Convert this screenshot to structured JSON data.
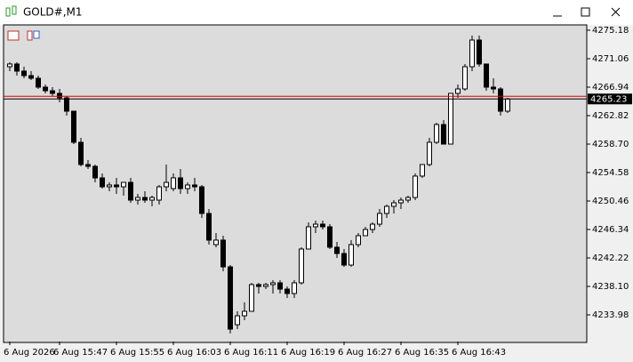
{
  "chart_data": {
    "type": "candlestick",
    "title": "GOLD#,M1",
    "categories": [
      "6 Aug 2026",
      null,
      null,
      null,
      null,
      null,
      null,
      "6 Aug 15:47",
      null,
      null,
      null,
      null,
      null,
      null,
      null,
      "6 Aug 15:55",
      null,
      null,
      null,
      null,
      null,
      null,
      null,
      "6 Aug 16:03",
      null,
      null,
      null,
      null,
      null,
      null,
      null,
      "6 Aug 16:11",
      null,
      null,
      null,
      null,
      null,
      null,
      null,
      "6 Aug 16:19",
      null,
      null,
      null,
      null,
      null,
      null,
      null,
      "6 Aug 16:27",
      null,
      null,
      null,
      null,
      null,
      null,
      null,
      "6 Aug 16:35",
      null,
      null,
      null,
      null,
      null,
      null,
      null,
      "6 Aug 16:43",
      null,
      null,
      null,
      null,
      null,
      null,
      null
    ],
    "open": [
      4269.9,
      4270.29,
      4269.26,
      4268.61,
      4268.23,
      4266.94,
      4266.42,
      4266.04,
      4265.39,
      4263.46,
      4258.96,
      4255.74,
      4255.48,
      4253.81,
      4252.52,
      4252.78,
      4252.52,
      4253.16,
      4250.59,
      4250.97,
      4250.59,
      4250.59,
      4252.52,
      4252.26,
      4253.81,
      4252.26,
      4252.78,
      4252.52,
      4248.66,
      4244.15,
      4244.8,
      4240.93,
      4232.56,
      4233.85,
      4234.5,
      4238.36,
      4238.1,
      4238.36,
      4238.62,
      4237.71,
      4237.07,
      4238.62,
      4243.51,
      4246.73,
      4247.11,
      4246.73,
      4243.77,
      4242.86,
      4241.19,
      4244.15,
      4245.44,
      4246.34,
      4247.11,
      4248.66,
      4249.69,
      4250.2,
      4250.59,
      4250.97,
      4254.07,
      4255.74,
      4258.96,
      4261.53,
      4258.7,
      4266.04,
      4266.68,
      4269.9,
      4273.76,
      4270.29,
      4266.94,
      4266.68,
      4263.46
    ],
    "high": [
      4270.55,
      4270.55,
      4269.9,
      4269.26,
      4268.61,
      4267.33,
      4266.94,
      4266.68,
      4265.65,
      4263.46,
      4259.6,
      4256.38,
      4255.74,
      4254.45,
      4253.16,
      4253.81,
      4253.16,
      4253.81,
      4251.49,
      4251.88,
      4251.23,
      4252.78,
      4255.74,
      4254.45,
      4255.1,
      4253.16,
      4253.81,
      4252.78,
      4249.3,
      4245.83,
      4245.44,
      4241.19,
      4234.5,
      4235.78,
      4238.62,
      4238.62,
      4238.62,
      4239.0,
      4239.0,
      4238.1,
      4239.0,
      4243.77,
      4247.37,
      4247.63,
      4247.63,
      4247.11,
      4244.54,
      4243.51,
      4244.8,
      4245.83,
      4246.73,
      4247.37,
      4249.3,
      4249.95,
      4250.59,
      4250.97,
      4251.23,
      4254.45,
      4255.74,
      4259.6,
      4261.79,
      4262.18,
      4266.04,
      4267.33,
      4270.29,
      4274.4,
      4274.4,
      4270.29,
      4268.23,
      4266.94,
      4265.39
    ],
    "low": [
      4269.26,
      4268.61,
      4268.23,
      4267.97,
      4266.68,
      4266.04,
      4265.65,
      4264.75,
      4262.82,
      4258.7,
      4255.48,
      4255.1,
      4253.16,
      4252.26,
      4251.88,
      4251.49,
      4251.23,
      4250.2,
      4249.95,
      4250.2,
      4249.69,
      4249.95,
      4251.88,
      4251.88,
      4251.49,
      4251.49,
      4251.88,
      4248.02,
      4244.15,
      4243.77,
      4240.29,
      4231.28,
      4231.92,
      4233.21,
      4234.5,
      4237.07,
      4237.71,
      4237.07,
      4237.07,
      4236.43,
      4236.43,
      4238.36,
      4243.51,
      4245.83,
      4246.34,
      4243.51,
      4242.22,
      4240.93,
      4240.93,
      4243.77,
      4245.44,
      4245.83,
      4246.73,
      4248.02,
      4248.66,
      4249.3,
      4250.2,
      4250.59,
      4253.81,
      4255.48,
      4258.7,
      4258.7,
      4258.7,
      4265.39,
      4266.42,
      4269.26,
      4269.9,
      4266.42,
      4266.04,
      4262.82,
      4263.21
    ],
    "close": [
      4270.29,
      4269.26,
      4268.61,
      4268.23,
      4266.94,
      4266.42,
      4266.04,
      4265.39,
      4263.46,
      4258.96,
      4255.74,
      4255.48,
      4253.81,
      4252.52,
      4252.78,
      4252.52,
      4253.16,
      4250.59,
      4250.97,
      4250.59,
      4250.97,
      4252.52,
      4253.16,
      4253.81,
      4252.26,
      4252.78,
      4252.52,
      4248.66,
      4244.8,
      4244.8,
      4240.93,
      4231.92,
      4233.85,
      4234.5,
      4238.36,
      4238.1,
      4238.36,
      4238.62,
      4237.71,
      4237.07,
      4238.62,
      4243.51,
      4246.73,
      4247.11,
      4246.73,
      4243.77,
      4242.86,
      4241.19,
      4244.15,
      4245.44,
      4246.34,
      4247.11,
      4248.66,
      4249.69,
      4250.2,
      4250.59,
      4250.97,
      4254.07,
      4255.74,
      4258.96,
      4261.53,
      4258.7,
      4266.04,
      4266.68,
      4269.9,
      4273.76,
      4270.29,
      4266.94,
      4266.68,
      4263.46,
      4265.23
    ],
    "up_color": "#ffffff",
    "down_color": "#000000",
    "line_color": "#000000",
    "current_price": 4265.23,
    "price_line_color": "#e00000",
    "ylim": [
      4230.12,
      4275.95
    ],
    "yticks": [
      4275.18,
      4271.06,
      4266.94,
      4262.82,
      {
        "value": 4258.7,
        "label": "4258.70"
      },
      4254.58,
      4250.46,
      4246.34,
      4242.22,
      {
        "value": 4238.1,
        "label": "4238.10"
      },
      4233.98
    ]
  }
}
